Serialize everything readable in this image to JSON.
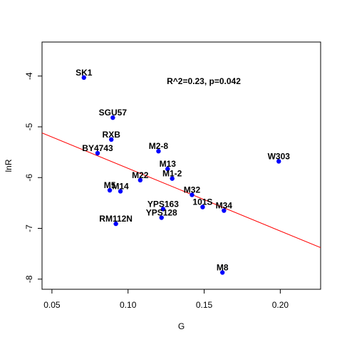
{
  "chart_data": {
    "type": "scatter",
    "title": "",
    "xlabel": "G",
    "ylabel": "lnR",
    "xlim": [
      0.0435,
      0.2265
    ],
    "ylim": [
      -8.2,
      -3.33
    ],
    "x_ticks": [
      0.05,
      0.1,
      0.15,
      0.2
    ],
    "x_tick_labels": [
      "0.05",
      "0.10",
      "0.15",
      "0.20"
    ],
    "y_ticks": [
      -8,
      -7,
      -6,
      -5,
      -4
    ],
    "y_tick_labels": [
      "-8",
      "-7",
      "-6",
      "-5",
      "-4"
    ],
    "annotation": "R^2=0.23, p=0.042",
    "point_color": "#0000ff",
    "regression_color": "#ff0000",
    "regression_line": [
      {
        "x": 0.0435,
        "y": -5.12
      },
      {
        "x": 0.2265,
        "y": -7.38
      }
    ],
    "points": [
      {
        "label": "SK1",
        "x": 0.071,
        "y": -4.03
      },
      {
        "label": "SGU57",
        "x": 0.09,
        "y": -4.82
      },
      {
        "label": "RXB",
        "x": 0.089,
        "y": -5.25
      },
      {
        "label": "BY4743",
        "x": 0.08,
        "y": -5.52
      },
      {
        "label": "M2-8",
        "x": 0.12,
        "y": -5.48
      },
      {
        "label": "W303",
        "x": 0.199,
        "y": -5.68
      },
      {
        "label": "M13",
        "x": 0.126,
        "y": -5.83
      },
      {
        "label": "M1-2",
        "x": 0.129,
        "y": -6.02
      },
      {
        "label": "M22",
        "x": 0.108,
        "y": -6.05
      },
      {
        "label": "M5",
        "x": 0.088,
        "y": -6.25
      },
      {
        "label": "M14",
        "x": 0.095,
        "y": -6.27
      },
      {
        "label": "M32",
        "x": 0.142,
        "y": -6.34
      },
      {
        "label": "101S",
        "x": 0.149,
        "y": -6.58
      },
      {
        "label": "M34",
        "x": 0.163,
        "y": -6.65
      },
      {
        "label": "YPS163",
        "x": 0.123,
        "y": -6.62
      },
      {
        "label": "YPS128",
        "x": 0.122,
        "y": -6.79
      },
      {
        "label": "RM112N",
        "x": 0.092,
        "y": -6.91
      },
      {
        "label": "M8",
        "x": 0.162,
        "y": -7.87
      }
    ]
  }
}
